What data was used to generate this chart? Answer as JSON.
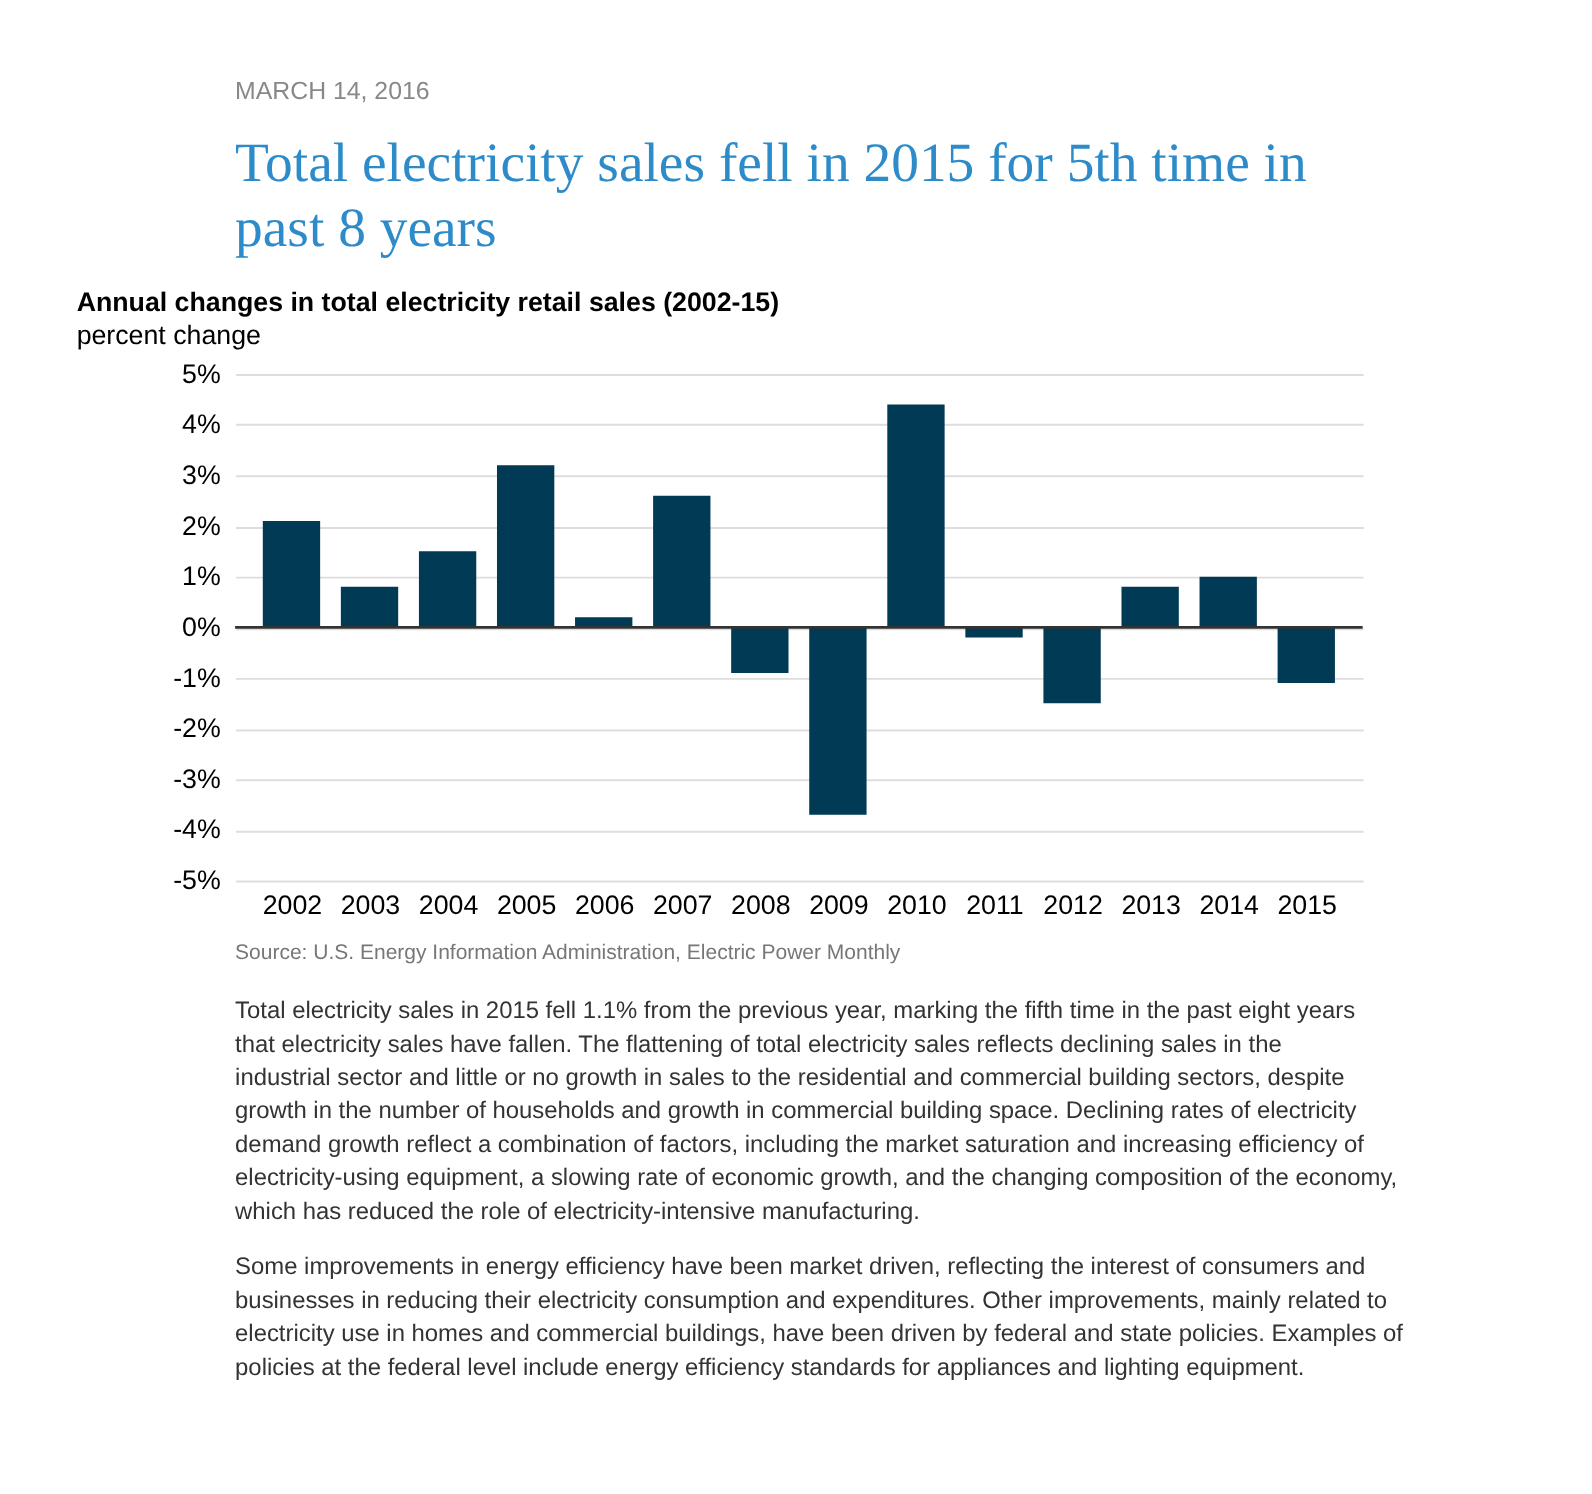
{
  "chart_data": {
    "type": "bar",
    "title": "Total electricity sales fell in 2015 for 5th time in past 8 years",
    "subtitle": "Annual changes in total electricity retail sales (2002-15)",
    "ylabel": "percent change",
    "categories": [
      "2002",
      "2003",
      "2004",
      "2005",
      "2006",
      "2007",
      "2008",
      "2009",
      "2010",
      "2011",
      "2012",
      "2013",
      "2014",
      "2015"
    ],
    "values": [
      2.1,
      0.8,
      1.5,
      3.2,
      0.2,
      2.6,
      -0.9,
      -3.7,
      4.4,
      -0.2,
      -1.5,
      0.8,
      1.0,
      -1.1
    ],
    "color": "#003a54",
    "ylim": [
      -5,
      5
    ],
    "yticks": [
      {
        "value": -5,
        "label": "-5%"
      },
      {
        "value": -4,
        "label": "-4%"
      },
      {
        "value": -3,
        "label": "-3%"
      },
      {
        "value": -2,
        "label": "-2%"
      },
      {
        "value": -1,
        "label": "-1%"
      },
      {
        "value": 0,
        "label": "0%"
      },
      {
        "value": 1,
        "label": "1%"
      },
      {
        "value": 2,
        "label": "2%"
      },
      {
        "value": 3,
        "label": "3%"
      },
      {
        "value": 4,
        "label": "4%"
      },
      {
        "value": 5,
        "label": "5%"
      }
    ],
    "grid": "y",
    "ref_lines": [
      {
        "axis": "y",
        "value": 0,
        "color": "#333333"
      }
    ],
    "annotations": [
      "MARCH 14, 2016",
      "Source: U.S. Energy Information Administration, Electric Power Monthly",
      "Total electricity sales in 2015 fell 1.1% from the previous year, marking the fifth time in the past eight years that electricity sales have fallen. The flattening of total electricity sales reflects declining sales in the industrial sector and little or no growth in sales to the residential and commercial building sectors, despite growth in the number of households and growth in commercial building space. Declining rates of electricity demand growth reflect a combination of factors, including the market saturation and increasing efficiency of electricity-using equipment, a slowing rate of economic growth, and the changing composition of the economy, which has reduced the role of electricity-intensive manufacturing.",
      "Some improvements in energy efficiency have been market driven, reflecting the interest of consumers and businesses in reducing their electricity consumption and expenditures. Other improvements, mainly related to electricity use in homes and commercial buildings, have been driven by federal and state policies. Examples of policies at the federal level include energy efficiency standards for appliances and lighting equipment."
    ]
  }
}
